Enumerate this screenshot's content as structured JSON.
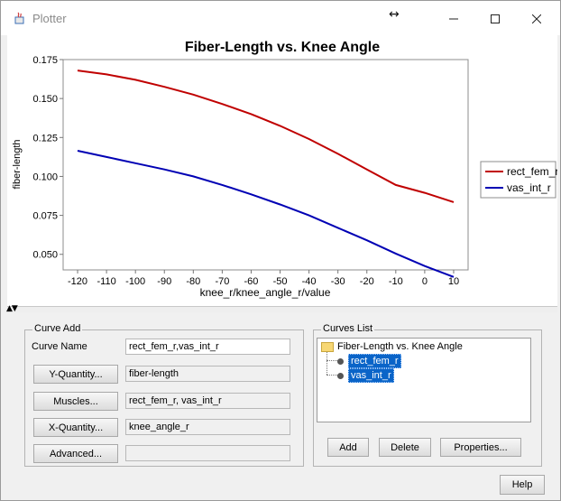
{
  "window": {
    "title": "Plotter"
  },
  "chart_data": {
    "type": "line",
    "title": "Fiber-Length vs. Knee Angle",
    "xlabel": "knee_r/knee_angle_r/value",
    "ylabel": "fiber-length",
    "xlim": [
      -125,
      15
    ],
    "ylim": [
      0.04,
      0.175
    ],
    "xticks": [
      "-120",
      "-110",
      "-100",
      "-90",
      "-80",
      "-70",
      "-60",
      "-50",
      "-40",
      "-30",
      "-20",
      "-10",
      "0",
      "10"
    ],
    "yticks": [
      "0.175",
      "0.150",
      "0.125",
      "0.100",
      "0.075",
      "0.050"
    ],
    "grid": false,
    "legend_position": "right",
    "x": [
      -120,
      -110,
      -100,
      -90,
      -80,
      -70,
      -60,
      -50,
      -40,
      -30,
      -20,
      -10,
      0,
      10
    ],
    "series": [
      {
        "name": "rect_fem_r",
        "color": "#c00000",
        "values": [
          0.168,
          0.1655,
          0.162,
          0.1575,
          0.1525,
          0.1465,
          0.14,
          0.1325,
          0.124,
          0.1145,
          0.1045,
          0.0945,
          0.0895,
          0.0835
        ]
      },
      {
        "name": "vas_int_r",
        "color": "#0000b4",
        "values": [
          0.1165,
          0.1125,
          0.1085,
          0.1045,
          0.1,
          0.0945,
          0.0885,
          0.082,
          0.075,
          0.067,
          0.059,
          0.0505,
          0.0425,
          0.0355
        ]
      }
    ]
  },
  "curve_add": {
    "title": "Curve Add",
    "curve_name_label": "Curve Name",
    "curve_name_value": "rect_fem_r,vas_int_r",
    "y_quantity_button": "Y-Quantity...",
    "y_quantity_value": "fiber-length",
    "muscles_button": "Muscles...",
    "muscles_value": "rect_fem_r, vas_int_r",
    "x_quantity_button": "X-Quantity...",
    "x_quantity_value": "knee_angle_r",
    "advanced_button": "Advanced...",
    "advanced_value": ""
  },
  "curves_list": {
    "title": "Curves List",
    "root": "Fiber-Length vs. Knee Angle",
    "items": [
      "rect_fem_r",
      "vas_int_r"
    ],
    "add_button": "Add",
    "delete_button": "Delete",
    "properties_button": "Properties..."
  },
  "help_button": "Help"
}
